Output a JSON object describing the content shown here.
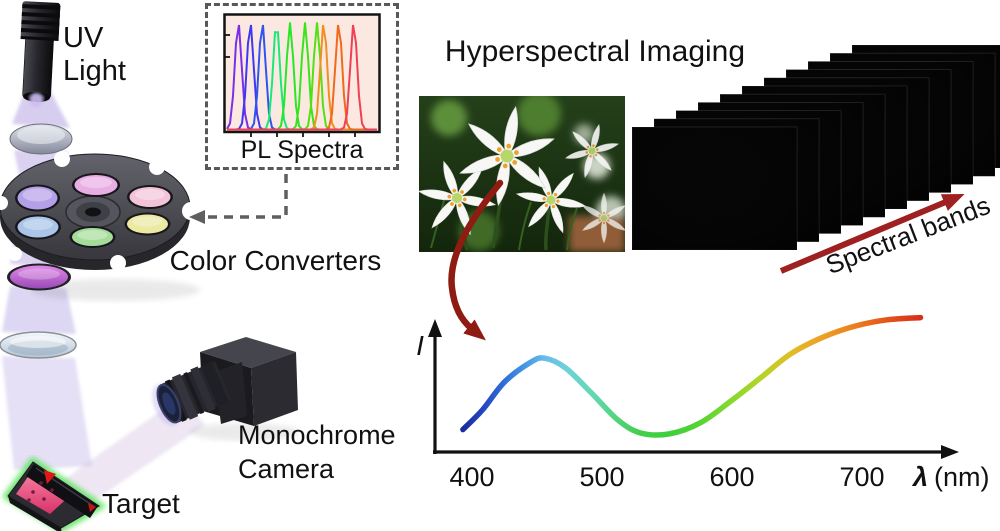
{
  "title": "Hyperspectral Imaging",
  "labels": {
    "uv_light": "UV\nLight",
    "color_converters": "Color Converters",
    "monochrome_camera": "Monochrome\nCamera",
    "target": "Target",
    "spectral_bands": "Spectral bands",
    "pl_spectra": "PL Spectra"
  },
  "colors": {
    "background": "#ffffff",
    "text": "#111111",
    "uv_beam": "#b7a4e2",
    "reflected_beam": "#cbb6dc",
    "dashed_connector": "#5f5f5f",
    "flow_arrow_red": "#8f1c12",
    "bands_arrow_red": "#9e2020",
    "pl_plot_bg": "#fbe9e1",
    "target_glow_green": "#5fe35f",
    "filter_wheel_colors": [
      "#b3a0e8",
      "#e9aee4",
      "#f3c3d8",
      "#aac4ea",
      "#a6dc9a",
      "#ece9a2"
    ]
  },
  "chart_data": [
    {
      "id": "pl-spectra-inset",
      "type": "line",
      "title": "PL Spectra",
      "xlabel": "",
      "ylabel": "",
      "note": "Normalized PL emission peaks of the color converters (axes unlabeled); peak centers as fraction of x-axis",
      "peak_width_sigma": 0.023,
      "peak_height": 1.0,
      "peaks": [
        {
          "center": 0.075,
          "color": "#7a2fe8"
        },
        {
          "center": 0.155,
          "color": "#4038f0"
        },
        {
          "center": 0.235,
          "color": "#2f55ee"
        },
        {
          "center": 0.33,
          "color": "#1ae878"
        },
        {
          "center": 0.42,
          "color": "#28e628"
        },
        {
          "center": 0.52,
          "color": "#38e41a"
        },
        {
          "center": 0.6,
          "color": "#55e014"
        },
        {
          "center": 0.645,
          "color": "#f09022"
        },
        {
          "center": 0.745,
          "color": "#f06a1a"
        },
        {
          "center": 0.845,
          "color": "#f04055"
        }
      ]
    },
    {
      "id": "pixel-spectrum",
      "type": "line",
      "ylabel": "I",
      "xlabel_symbol": "λ",
      "xlabel_unit": "(nm)",
      "x_ticks": [
        400,
        500,
        600,
        700
      ],
      "x_range": [
        393,
        745
      ],
      "grid": false,
      "points": [
        {
          "x": 393,
          "y": 0.16,
          "color": "#1c2c9e"
        },
        {
          "x": 408,
          "y": 0.3,
          "color": "#2446c0"
        },
        {
          "x": 425,
          "y": 0.5,
          "color": "#2f6fd8"
        },
        {
          "x": 445,
          "y": 0.64,
          "color": "#4da3e6"
        },
        {
          "x": 456,
          "y": 0.67,
          "color": "#66bce8"
        },
        {
          "x": 472,
          "y": 0.6,
          "color": "#6fd0dc"
        },
        {
          "x": 492,
          "y": 0.42,
          "color": "#63d8b4"
        },
        {
          "x": 512,
          "y": 0.23,
          "color": "#52d478"
        },
        {
          "x": 530,
          "y": 0.135,
          "color": "#41cf4a"
        },
        {
          "x": 552,
          "y": 0.13,
          "color": "#3ecf3e"
        },
        {
          "x": 576,
          "y": 0.21,
          "color": "#58d434"
        },
        {
          "x": 600,
          "y": 0.37,
          "color": "#85d92e"
        },
        {
          "x": 622,
          "y": 0.53,
          "color": "#b5d428"
        },
        {
          "x": 645,
          "y": 0.7,
          "color": "#dfbe26"
        },
        {
          "x": 670,
          "y": 0.82,
          "color": "#eda026"
        },
        {
          "x": 695,
          "y": 0.9,
          "color": "#ec7d1f"
        },
        {
          "x": 720,
          "y": 0.945,
          "color": "#e2531b"
        },
        {
          "x": 745,
          "y": 0.96,
          "color": "#d92e18"
        }
      ]
    }
  ],
  "spectral_stack": {
    "num_bands": 11,
    "band_colors_front_to_back": [
      "#e01212",
      "#e65412",
      "#e28b16",
      "#cdbd1a",
      "#8ecd1a",
      "#3fcb20",
      "#1ec24e",
      "#18b582",
      "#17a0ae",
      "#2b6ed0",
      "#2038c2"
    ]
  }
}
